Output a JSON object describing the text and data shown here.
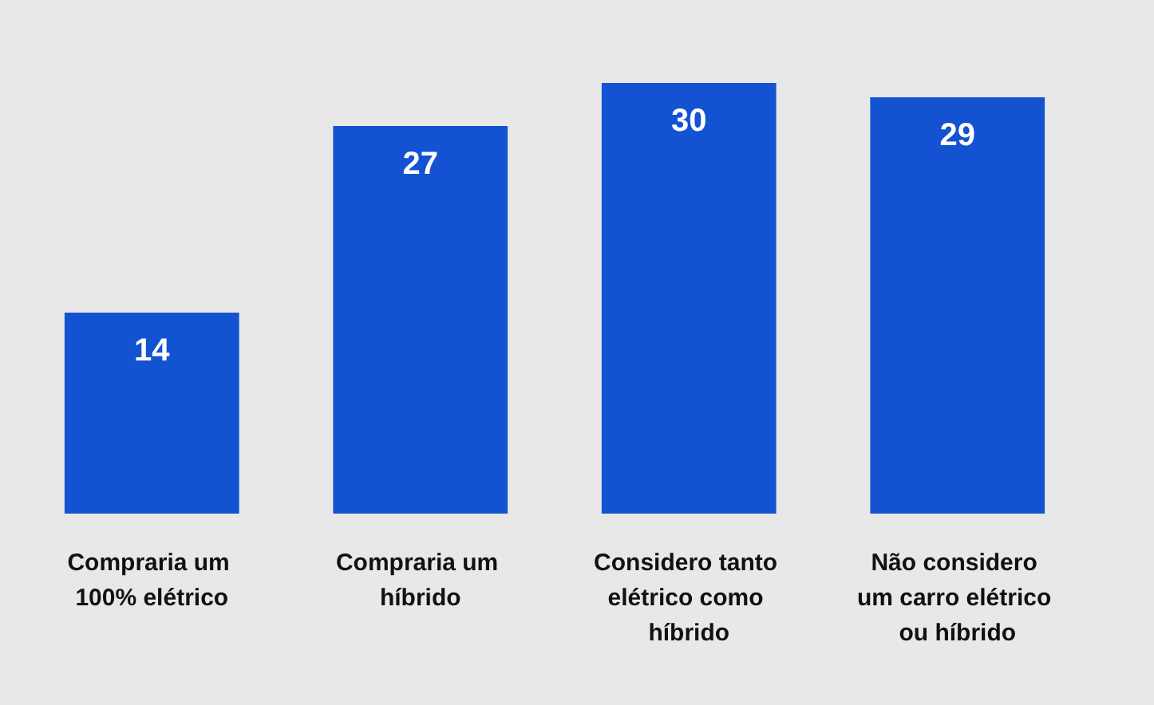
{
  "chart_data": {
    "type": "bar",
    "categories": [
      "Compraria um 100% elétrico",
      "Compraria um híbrido",
      "Considero tanto elétrico como híbrido",
      "Não considero um carro elétrico ou híbrido"
    ],
    "values": [
      14,
      27,
      30,
      29
    ],
    "color": "#1352d0",
    "data_labels": true
  }
}
